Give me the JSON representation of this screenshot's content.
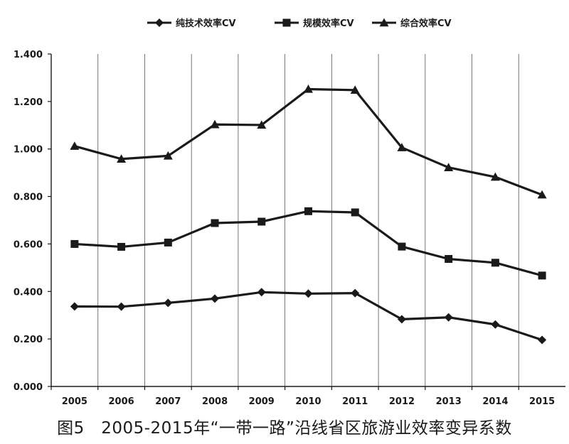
{
  "caption": "图5　2005-2015年“一带一路”沿线省区旅游业效率变异系数",
  "chart_data": {
    "type": "line",
    "categories": [
      "2005",
      "2006",
      "2007",
      "2008",
      "2009",
      "2010",
      "2011",
      "2012",
      "2013",
      "2014",
      "2015"
    ],
    "ylim": [
      0,
      1.4
    ],
    "yticks": [
      "0.000",
      "0.200",
      "0.400",
      "0.600",
      "0.800",
      "1.000",
      "1.200",
      "1.400"
    ],
    "legend_position": "top-center",
    "grid": "vertical lines only",
    "series": [
      {
        "name": "纯技术效率CV",
        "marker": "diamond",
        "values": [
          0.337,
          0.336,
          0.352,
          0.37,
          0.397,
          0.391,
          0.393,
          0.283,
          0.291,
          0.261,
          0.196
        ]
      },
      {
        "name": "规模效率CV",
        "marker": "square",
        "values": [
          0.6,
          0.588,
          0.606,
          0.688,
          0.694,
          0.738,
          0.733,
          0.589,
          0.537,
          0.521,
          0.467
        ]
      },
      {
        "name": "综合效率CV",
        "marker": "triangle",
        "values": [
          1.012,
          0.958,
          0.971,
          1.103,
          1.101,
          1.252,
          1.248,
          1.006,
          0.922,
          0.882,
          0.807
        ]
      }
    ],
    "line_color": "#1a1a1a"
  }
}
